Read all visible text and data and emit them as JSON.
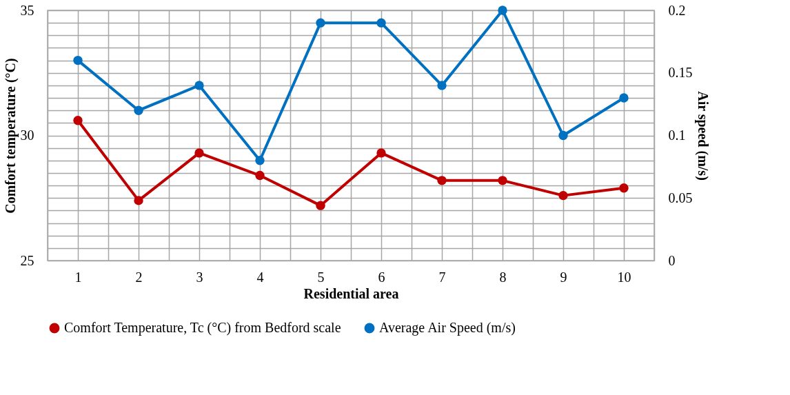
{
  "chart_data": {
    "type": "line",
    "xlabel": "Residential area",
    "ylabel": "Comfort temperature (°C)",
    "y2label": "Air speed (m/s)",
    "x": [
      1,
      2,
      3,
      4,
      5,
      6,
      7,
      8,
      9,
      10
    ],
    "series": [
      {
        "name": "Comfort Temperature, Tc (°C) from Bedford scale",
        "color": "#c00000",
        "values": [
          30.6,
          27.4,
          29.3,
          28.4,
          27.2,
          29.3,
          28.2,
          28.2,
          27.6,
          27.9
        ]
      },
      {
        "name": "Average Air Speed (m/s)",
        "color": "#0070c0",
        "axis": "y2",
        "values": [
          0.16,
          0.12,
          0.14,
          0.08,
          0.19,
          0.19,
          0.14,
          0.2,
          0.1,
          0.13
        ]
      }
    ],
    "xlim": [
      0.5,
      10.5
    ],
    "xticks": [
      {
        "value": 0.5,
        "label": null
      },
      1,
      {
        "value": 1.5,
        "label": null
      },
      2,
      {
        "value": 2.5,
        "label": null
      },
      3,
      {
        "value": 3.5,
        "label": null
      },
      4,
      {
        "value": 4.5,
        "label": null
      },
      5,
      {
        "value": 5.5,
        "label": null
      },
      6,
      {
        "value": 6.5,
        "label": null
      },
      7,
      {
        "value": 7.5,
        "label": null
      },
      8,
      {
        "value": 8.5,
        "label": null
      },
      9,
      {
        "value": 9.5,
        "label": null
      },
      10,
      {
        "value": 10.5,
        "label": null
      }
    ],
    "ylim": [
      25,
      35
    ],
    "yticks": [
      25,
      {
        "value": 25.5,
        "label": null
      },
      {
        "value": 26,
        "label": null
      },
      {
        "value": 26.5,
        "label": null
      },
      {
        "value": 27,
        "label": null
      },
      {
        "value": 27.5,
        "label": null
      },
      {
        "value": 28,
        "label": null
      },
      {
        "value": 28.5,
        "label": null
      },
      {
        "value": 29,
        "label": null
      },
      {
        "value": 29.5,
        "label": null
      },
      30,
      {
        "value": 30.5,
        "label": null
      },
      {
        "value": 31,
        "label": null
      },
      {
        "value": 31.5,
        "label": null
      },
      {
        "value": 32,
        "label": null
      },
      {
        "value": 32.5,
        "label": null
      },
      {
        "value": 33,
        "label": null
      },
      {
        "value": 33.5,
        "label": null
      },
      {
        "value": 34,
        "label": null
      },
      {
        "value": 34.5,
        "label": null
      },
      35
    ],
    "y2lim": [
      0,
      0.2
    ],
    "y2ticks": [
      0,
      0.05,
      0.1,
      0.15,
      0.2
    ],
    "grid": true,
    "legend": "bottom",
    "marker": "circle",
    "line_style": "solid"
  }
}
